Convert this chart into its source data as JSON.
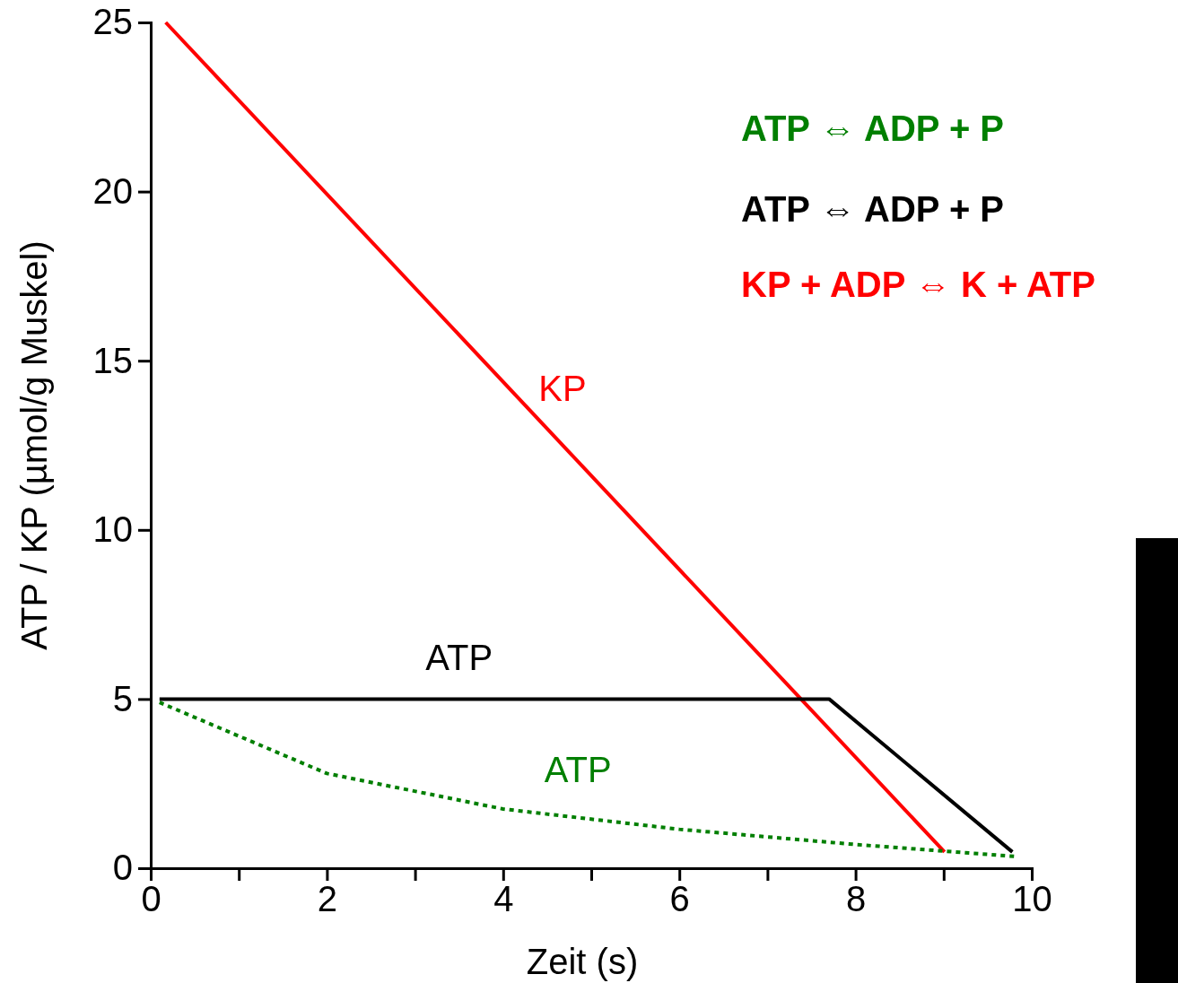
{
  "chart_data": {
    "type": "line",
    "xlabel": "Zeit (s)",
    "ylabel": "ATP / KP (µmol/g Muskel)",
    "xlim": [
      0,
      10
    ],
    "ylim": [
      0,
      25
    ],
    "xticks": [
      0,
      {
        "value": 1,
        "label": null
      },
      2,
      {
        "value": 3,
        "label": null
      },
      4,
      {
        "value": 5,
        "label": null
      },
      6,
      {
        "value": 7,
        "label": null
      },
      8,
      {
        "value": 9,
        "label": null
      },
      10
    ],
    "yticks": [
      0,
      5,
      10,
      15,
      20,
      25
    ],
    "grid": false,
    "marker": "none",
    "series": [
      {
        "name": "KP",
        "color": "#ff0000",
        "x": [
          0.17,
          9.01
        ],
        "values": [
          25,
          0.48
        ],
        "line_style": "solid"
      },
      {
        "name": "ATP",
        "color": "#000000",
        "x": [
          0.1,
          7.7,
          9.78
        ],
        "values": [
          5,
          5,
          0.48
        ],
        "line_style": "solid"
      },
      {
        "name": "ATP",
        "color": "#007f00",
        "x": [
          0.1,
          2,
          4,
          6,
          8,
          9.8
        ],
        "values": [
          4.9,
          2.8,
          1.75,
          1.15,
          0.7,
          0.35
        ],
        "line_style": "dotted"
      }
    ],
    "annotations": [
      "ATP ⇔ ADP + P",
      "ATP ⇔ ADP + P",
      "KP + ADP ⇔ K + ATP"
    ]
  }
}
